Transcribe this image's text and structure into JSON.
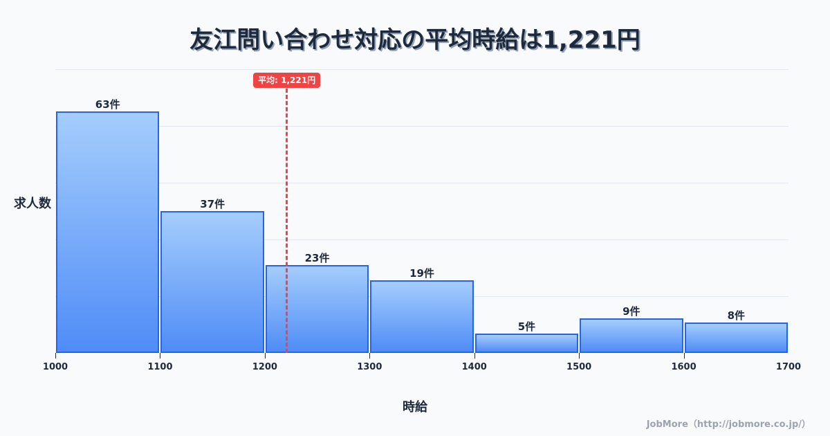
{
  "title": "友江問い合わせ対応の平均時給は1,221円",
  "mean_badge": "平均: 1,221円",
  "ylabel": "求人数",
  "xlabel": "時給",
  "footer": "JobMore（http://jobmore.co.jp/）",
  "colors": {
    "background": "#f8fafc",
    "bar_fill_top": "#a5cdfc",
    "bar_fill_bottom": "#4f8cf6",
    "bar_border": "#2563eb",
    "mean_line": "#ef4444",
    "text": "#1e293b",
    "gridline": "#e2e8f0",
    "footer": "#9ca3af"
  },
  "bars": [
    {
      "label": "63件"
    },
    {
      "label": "37件"
    },
    {
      "label": "23件"
    },
    {
      "label": "19件"
    },
    {
      "label": "5件"
    },
    {
      "label": "9件"
    },
    {
      "label": "8件"
    }
  ],
  "ticks": [
    "1000",
    "1100",
    "1200",
    "1300",
    "1400",
    "1500",
    "1600",
    "1700"
  ],
  "chart_data": {
    "type": "bar",
    "title": "友江問い合わせ対応の平均時給は1,221円",
    "xlabel": "時給",
    "ylabel": "求人数",
    "bin_edges": [
      1000,
      1100,
      1200,
      1300,
      1400,
      1500,
      1600,
      1700
    ],
    "categories": [
      "1000-1100",
      "1100-1200",
      "1200-1300",
      "1300-1400",
      "1400-1500",
      "1500-1600",
      "1600-1700"
    ],
    "values": [
      63,
      37,
      23,
      19,
      5,
      9,
      8
    ],
    "value_unit": "件",
    "x_tick_labels": [
      "1000",
      "1100",
      "1200",
      "1300",
      "1400",
      "1500",
      "1600",
      "1700"
    ],
    "xlim": [
      1000,
      1700
    ],
    "ylim": [
      0,
      74
    ],
    "grid": {
      "horizontal": true,
      "y_tick_labels_shown": false
    },
    "annotations": [
      {
        "type": "vline",
        "x": 1221,
        "label": "平均: 1,221円",
        "style": "dashed",
        "color": "#ef4444"
      }
    ],
    "legend": null
  }
}
